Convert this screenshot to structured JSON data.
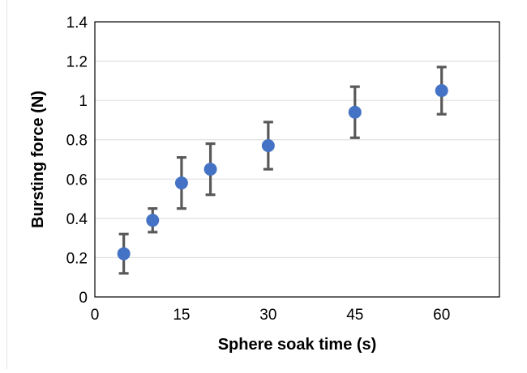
{
  "chart_data": {
    "type": "scatter",
    "xlabel": "Sphere soak time (s)",
    "ylabel": "Bursting force (N)",
    "xlim": [
      0,
      70
    ],
    "ylim": [
      0,
      1.4
    ],
    "x_ticks": [
      0,
      15,
      30,
      45,
      60
    ],
    "y_ticks": [
      0,
      0.2,
      0.4,
      0.6,
      0.8,
      1,
      1.2,
      1.4
    ],
    "x_tick_labels": [
      "0",
      "15",
      "30",
      "45",
      "60"
    ],
    "y_tick_labels": [
      "0",
      "0.2",
      "0.4",
      "0.6",
      "0.8",
      "1",
      "1.2",
      "1.4"
    ],
    "grid": "horizontal",
    "legend": "none",
    "marker_color": "#4472C4",
    "errorbar_color": "#595959",
    "gridline_color": "#d9d9d9",
    "series": [
      {
        "x": [
          5,
          10,
          15,
          20,
          30,
          45,
          60
        ],
        "y": [
          0.22,
          0.39,
          0.58,
          0.65,
          0.77,
          0.94,
          1.05
        ],
        "err_upper": [
          0.32,
          0.45,
          0.71,
          0.78,
          0.89,
          1.07,
          1.17
        ],
        "err_lower": [
          0.12,
          0.33,
          0.45,
          0.52,
          0.65,
          0.81,
          0.93
        ]
      }
    ]
  }
}
